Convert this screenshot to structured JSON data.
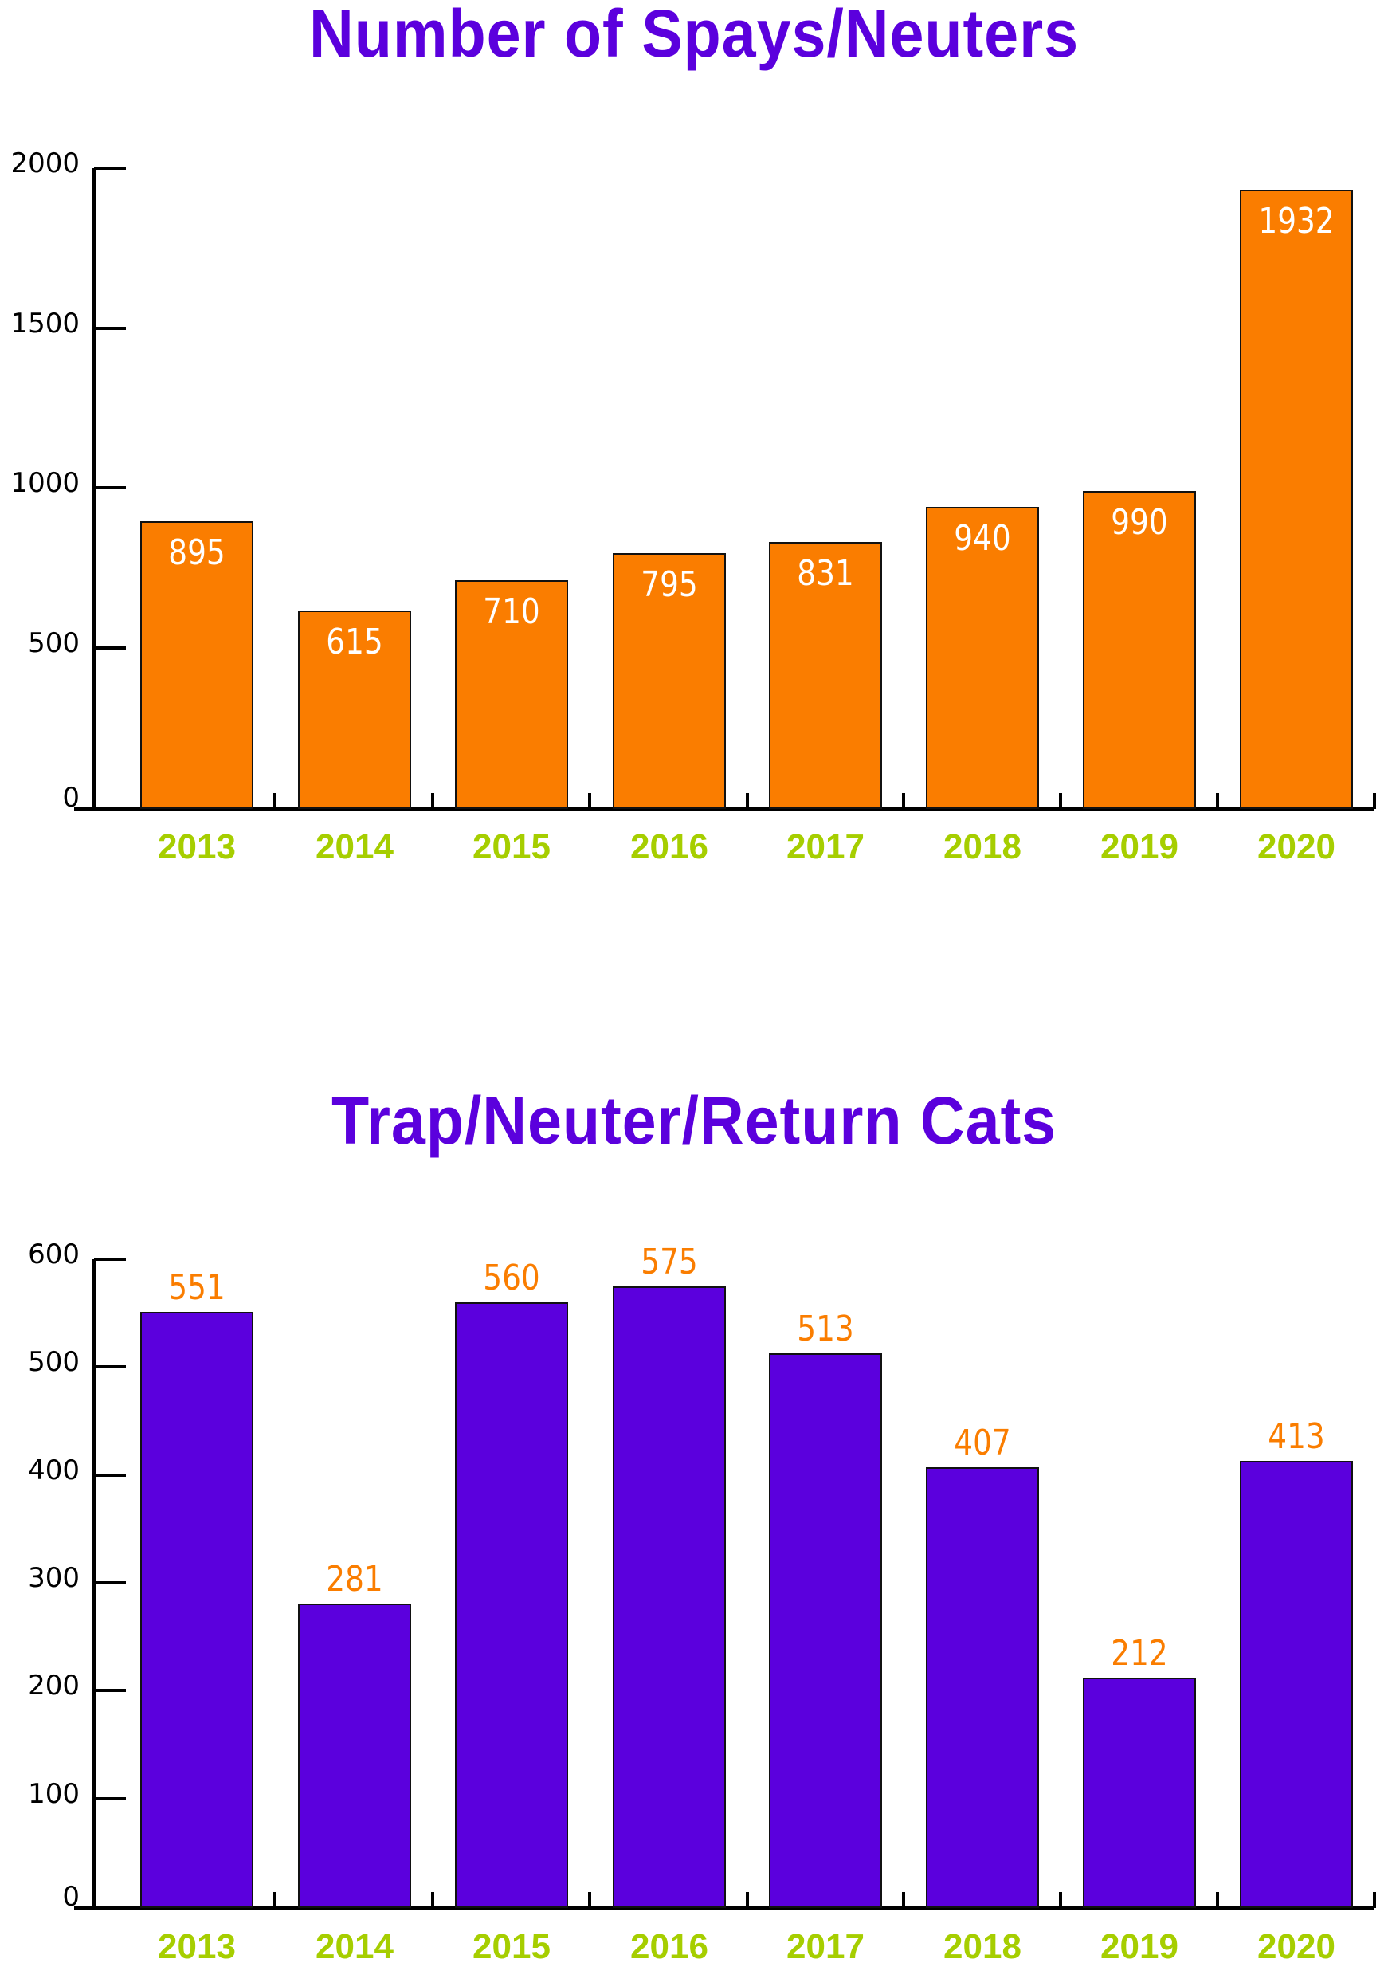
{
  "colors": {
    "title": "#5b00dd",
    "bar_chart1": "#fa7d00",
    "bar_chart2": "#5b00dd",
    "value_label_chart1": "#ffffff",
    "value_label_chart2": "#fa7d00",
    "x_label": "#a6ce00",
    "axis": "#000000"
  },
  "charts": [
    {
      "title": "Number of Spays/Neuters",
      "y_ticks": [
        "0",
        "500",
        "1000",
        "1500",
        "2000"
      ],
      "categories": [
        "2013",
        "2014",
        "2015",
        "2016",
        "2017",
        "2018",
        "2019",
        "2020"
      ],
      "values": [
        "895",
        "615",
        "710",
        "795",
        "831",
        "940",
        "990",
        "1932"
      ]
    },
    {
      "title": "Trap/Neuter/Return Cats",
      "y_ticks": [
        "0",
        "100",
        "200",
        "300",
        "400",
        "500",
        "600"
      ],
      "categories": [
        "2013",
        "2014",
        "2015",
        "2016",
        "2017",
        "2018",
        "2019",
        "2020"
      ],
      "values": [
        "551",
        "281",
        "560",
        "575",
        "513",
        "407",
        "212",
        "413"
      ]
    }
  ],
  "chart_data": [
    {
      "type": "bar",
      "title": "Number of Spays/Neuters",
      "xlabel": "",
      "ylabel": "",
      "categories": [
        "2013",
        "2014",
        "2015",
        "2016",
        "2017",
        "2018",
        "2019",
        "2020"
      ],
      "values": [
        895,
        615,
        710,
        795,
        831,
        940,
        990,
        1932
      ],
      "ylim": [
        0,
        2000
      ],
      "y_ticks": [
        0,
        500,
        1000,
        1500,
        2000
      ],
      "grid": false,
      "legend": null,
      "data_labels": "inside-top"
    },
    {
      "type": "bar",
      "title": "Trap/Neuter/Return Cats",
      "xlabel": "",
      "ylabel": "",
      "categories": [
        "2013",
        "2014",
        "2015",
        "2016",
        "2017",
        "2018",
        "2019",
        "2020"
      ],
      "values": [
        551,
        281,
        560,
        575,
        513,
        407,
        212,
        413
      ],
      "ylim": [
        0,
        600
      ],
      "y_ticks": [
        0,
        100,
        200,
        300,
        400,
        500,
        600
      ],
      "grid": false,
      "legend": null,
      "data_labels": "above"
    }
  ]
}
